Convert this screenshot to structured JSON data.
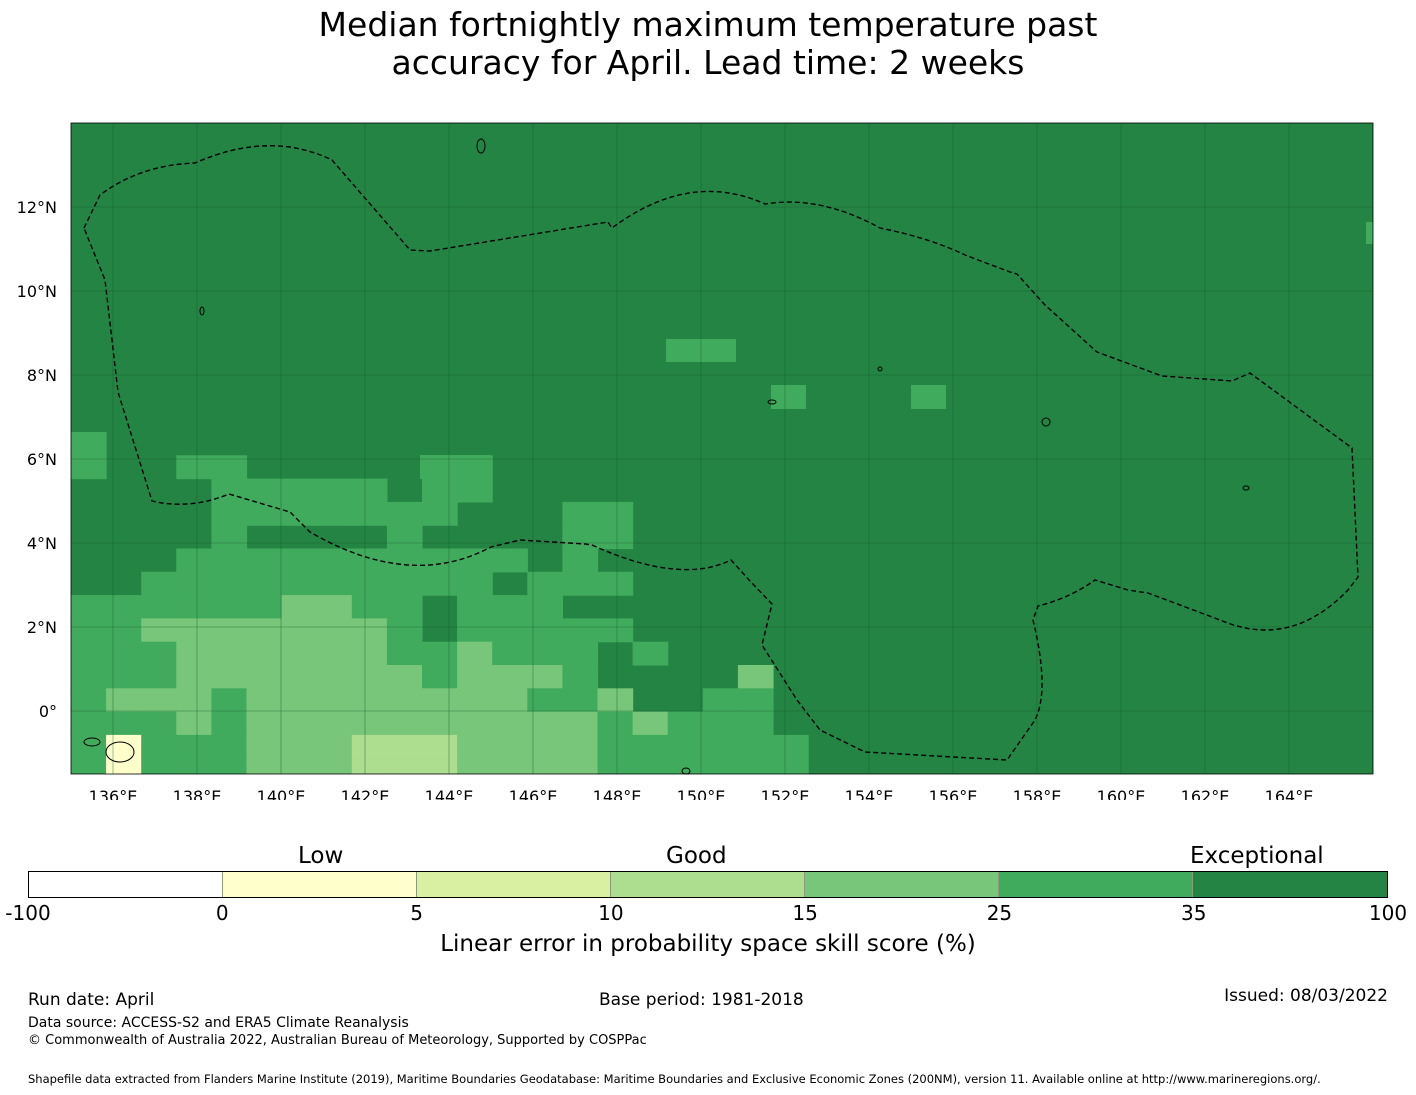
{
  "title_line1": "Median fortnightly maximum temperature past",
  "title_line2": "accuracy for April. Lead time: 2 weeks",
  "map": {
    "lon_range": [
      135,
      166
    ],
    "lat_range": [
      -1.5,
      14
    ],
    "lon_ticks": [
      "136°E",
      "138°E",
      "140°E",
      "142°E",
      "144°E",
      "146°E",
      "148°E",
      "150°E",
      "152°E",
      "154°E",
      "156°E",
      "158°E",
      "160°E",
      "162°E",
      "164°E"
    ],
    "lat_ticks": [
      "12°N",
      "10°N",
      "8°N",
      "6°N",
      "4°N",
      "2°N",
      "0°"
    ],
    "grid": true,
    "eez_boundary": "dashed black line",
    "colors": {
      "neg100_0": "#ffffff",
      "0_5": "#ffffcc",
      "5_10": "#d9f0a3",
      "10_15": "#addd8e",
      "15_25": "#78c679",
      "25_35": "#41ab5d",
      "35_100": "#238443"
    }
  },
  "colorbar": {
    "category_labels": [
      "Low",
      "Good",
      "Exceptional"
    ],
    "tick_labels": [
      "-100",
      "0",
      "5",
      "10",
      "15",
      "25",
      "35",
      "100"
    ],
    "colors": [
      "#ffffff",
      "#ffffcc",
      "#d9f0a3",
      "#addd8e",
      "#78c679",
      "#41ab5d",
      "#238443"
    ],
    "title": "Linear error in probability space skill score (%)"
  },
  "footer": {
    "run_date": "Run date: April",
    "base_period": "Base period: 1981-2018",
    "issued": "Issued: 08/03/2022",
    "data_source": "Data source: ACCESS-S2 and ERA5 Climate Reanalysis",
    "copyright": "© Commonwealth of Australia 2022, Australian Bureau of Meteorology, Supported by COSPPac",
    "shapefile": "Shapefile data extracted from Flanders Marine Institute (2019), Maritime Boundaries Geodatabase: Maritime Boundaries and Exclusive Economic Zones (200NM), version 11. Available online at http://www.marineregions.org/."
  }
}
